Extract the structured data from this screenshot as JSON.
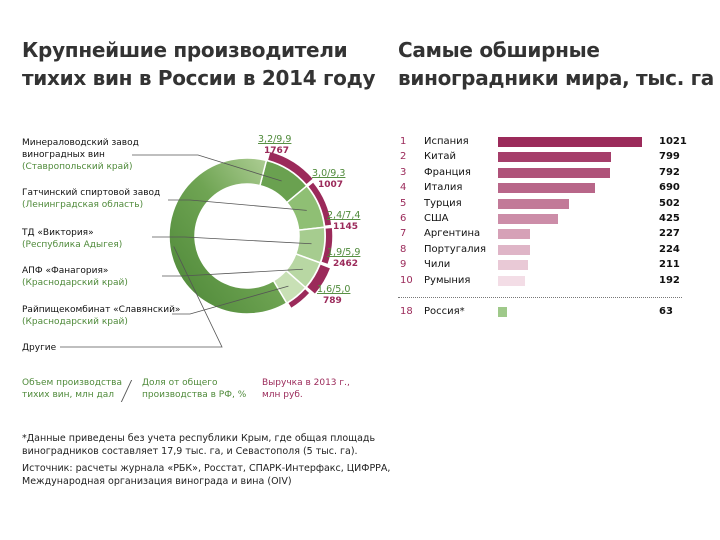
{
  "left_title": [
    "Крупнейшие производители",
    "тихих вин в России в 2014 году"
  ],
  "right_title": [
    "Самые обширные",
    "виноградники мира, тыс. га"
  ],
  "producers": [
    {
      "name": "Минераловодский завод",
      "name2": "виноградных вин",
      "region": "(Ставропольский край)",
      "volume": 3.2,
      "share": 9.9,
      "revenue": "1767",
      "label": "3,2/9,9"
    },
    {
      "name": "Гатчинский спиртовой завод",
      "name2": "",
      "region": "(Ленинградская область)",
      "volume": 3.0,
      "share": 9.3,
      "revenue": "1007",
      "label": "3,0/9,3"
    },
    {
      "name": "ТД «Виктория»",
      "name2": "",
      "region": "(Республика Адыгея)",
      "volume": 2.4,
      "share": 7.4,
      "revenue": "1145",
      "label": "2,4/7,4"
    },
    {
      "name": "АПФ «Фанагория»",
      "name2": "",
      "region": "(Краснодарский край)",
      "volume": 1.9,
      "share": 5.9,
      "revenue": "2462",
      "label": "1,9/5,9"
    },
    {
      "name": "Райпищекомбинат «Славянский»",
      "name2": "",
      "region": "(Краснодарский край)",
      "volume": 1.6,
      "share": 5.0,
      "revenue": "789",
      "label": "1,6/5,0"
    },
    {
      "name": "Другие",
      "name2": "",
      "region": "",
      "share": 62.5
    }
  ],
  "legend": {
    "volume": [
      "Объем производства",
      "тихих вин, млн дал"
    ],
    "share": [
      "Доля от общего",
      "производства в РФ, %"
    ],
    "revenue": [
      "Выручка в 2013 г.,",
      "млн руб."
    ]
  },
  "notes": [
    "*Данные приведены без учета республики Крым, где общая площадь",
    "виноградников составляет 17,9 тыс. га, и Севастополя (5 тыс. га).",
    "Источник: расчеты журнала «РБК», Росстат, СПАРК-Интерфакс, ЦИФРРА,",
    "Международная организация винограда и вина (OIV)"
  ],
  "chart_data": [
    {
      "type": "pie",
      "title": "Крупнейшие производители тихих вин в России в 2014 году",
      "categories": [
        "Минераловодский завод виноградных вин",
        "Гатчинский спиртовой завод",
        "ТД «Виктория»",
        "АПФ «Фанагория»",
        "Райпищекомбинат «Славянский»",
        "Другие"
      ],
      "values": [
        9.9,
        9.3,
        7.4,
        5.9,
        5.0,
        62.5
      ],
      "volume_mln_dal": [
        3.2,
        3.0,
        2.4,
        1.9,
        1.6
      ],
      "revenue_2013_mln_rub": [
        1767,
        1007,
        1145,
        2462,
        789
      ]
    },
    {
      "type": "bar",
      "title": "Самые обширные виноградники мира, тыс. га",
      "ranks": [
        "1",
        "2",
        "3",
        "4",
        "5",
        "6",
        "7",
        "8",
        "9",
        "10",
        "18"
      ],
      "categories": [
        "Испания",
        "Китай",
        "Франция",
        "Италия",
        "Турция",
        "США",
        "Аргентина",
        "Португалия",
        "Чили",
        "Румыния",
        "Россия*"
      ],
      "values": [
        1021,
        799,
        792,
        690,
        502,
        425,
        227,
        224,
        211,
        192,
        63
      ],
      "xlim": [
        0,
        1021
      ]
    }
  ],
  "colors": {
    "green_dark": "#4f8a3a",
    "green_light": "#c9dfb5",
    "crimson": "#9b2a5a",
    "bar_pale": "#f3dde6"
  }
}
